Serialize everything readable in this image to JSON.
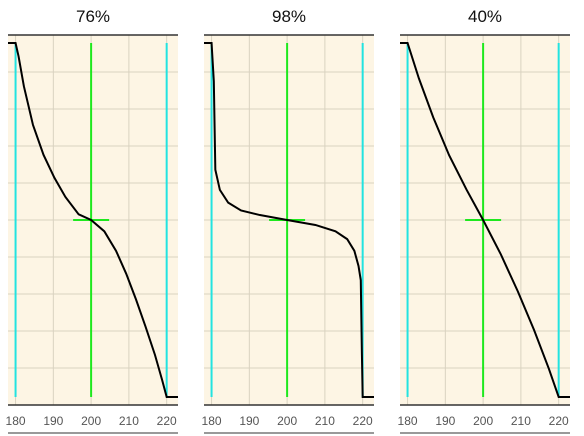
{
  "colors": {
    "panel_bg": "#fdf5e4",
    "grid": "#d9d2c0",
    "curve": "#000000",
    "limits": "#22e3e0",
    "target": "#1ee81e",
    "frame": "#333333"
  },
  "chart_data": [
    {
      "type": "line",
      "title": "76%",
      "xlabel": "",
      "ylabel": "",
      "xlim": [
        178,
        223
      ],
      "ylim": [
        0,
        1
      ],
      "xticks": [
        "180",
        "190",
        "200",
        "210",
        "220"
      ],
      "grid": true,
      "limits": [
        180,
        220
      ],
      "target": 200,
      "x": [
        180.0,
        180.8,
        182.2,
        184.6,
        187.4,
        190.3,
        193.2,
        196.7,
        200.0,
        203.5,
        206.6,
        209.3,
        211.9,
        214.4,
        216.9,
        218.8,
        220.0
      ],
      "y": [
        1.0,
        0.962,
        0.878,
        0.769,
        0.684,
        0.619,
        0.565,
        0.516,
        0.5,
        0.468,
        0.413,
        0.348,
        0.275,
        0.199,
        0.119,
        0.048,
        0.0
      ]
    },
    {
      "type": "line",
      "title": "98%",
      "xlabel": "",
      "ylabel": "",
      "xlim": [
        178,
        223
      ],
      "ylim": [
        0,
        1
      ],
      "xticks": [
        "180",
        "190",
        "200",
        "210",
        "220"
      ],
      "grid": true,
      "limits": [
        180,
        220
      ],
      "target": 200,
      "x": [
        180.0,
        180.6,
        181.0,
        182.2,
        184.4,
        187.8,
        192.8,
        200.0,
        207.5,
        212.8,
        215.9,
        217.8,
        218.9,
        219.5,
        219.8,
        220.0
      ],
      "y": [
        1.0,
        0.892,
        0.642,
        0.585,
        0.549,
        0.527,
        0.514,
        0.5,
        0.486,
        0.468,
        0.446,
        0.413,
        0.37,
        0.33,
        0.12,
        0.0
      ]
    },
    {
      "type": "line",
      "title": "40%",
      "xlabel": "",
      "ylabel": "",
      "xlim": [
        178,
        223
      ],
      "ylim": [
        0,
        1
      ],
      "xticks": [
        "180",
        "190",
        "200",
        "210",
        "220"
      ],
      "grid": true,
      "limits": [
        180,
        220
      ],
      "target": 200,
      "x": [
        180.0,
        183.0,
        186.8,
        191.0,
        195.6,
        200.0,
        204.6,
        209.2,
        213.5,
        217.4,
        220.0
      ],
      "y": [
        1.0,
        0.9,
        0.79,
        0.683,
        0.586,
        0.5,
        0.405,
        0.298,
        0.189,
        0.08,
        0.0
      ]
    }
  ]
}
